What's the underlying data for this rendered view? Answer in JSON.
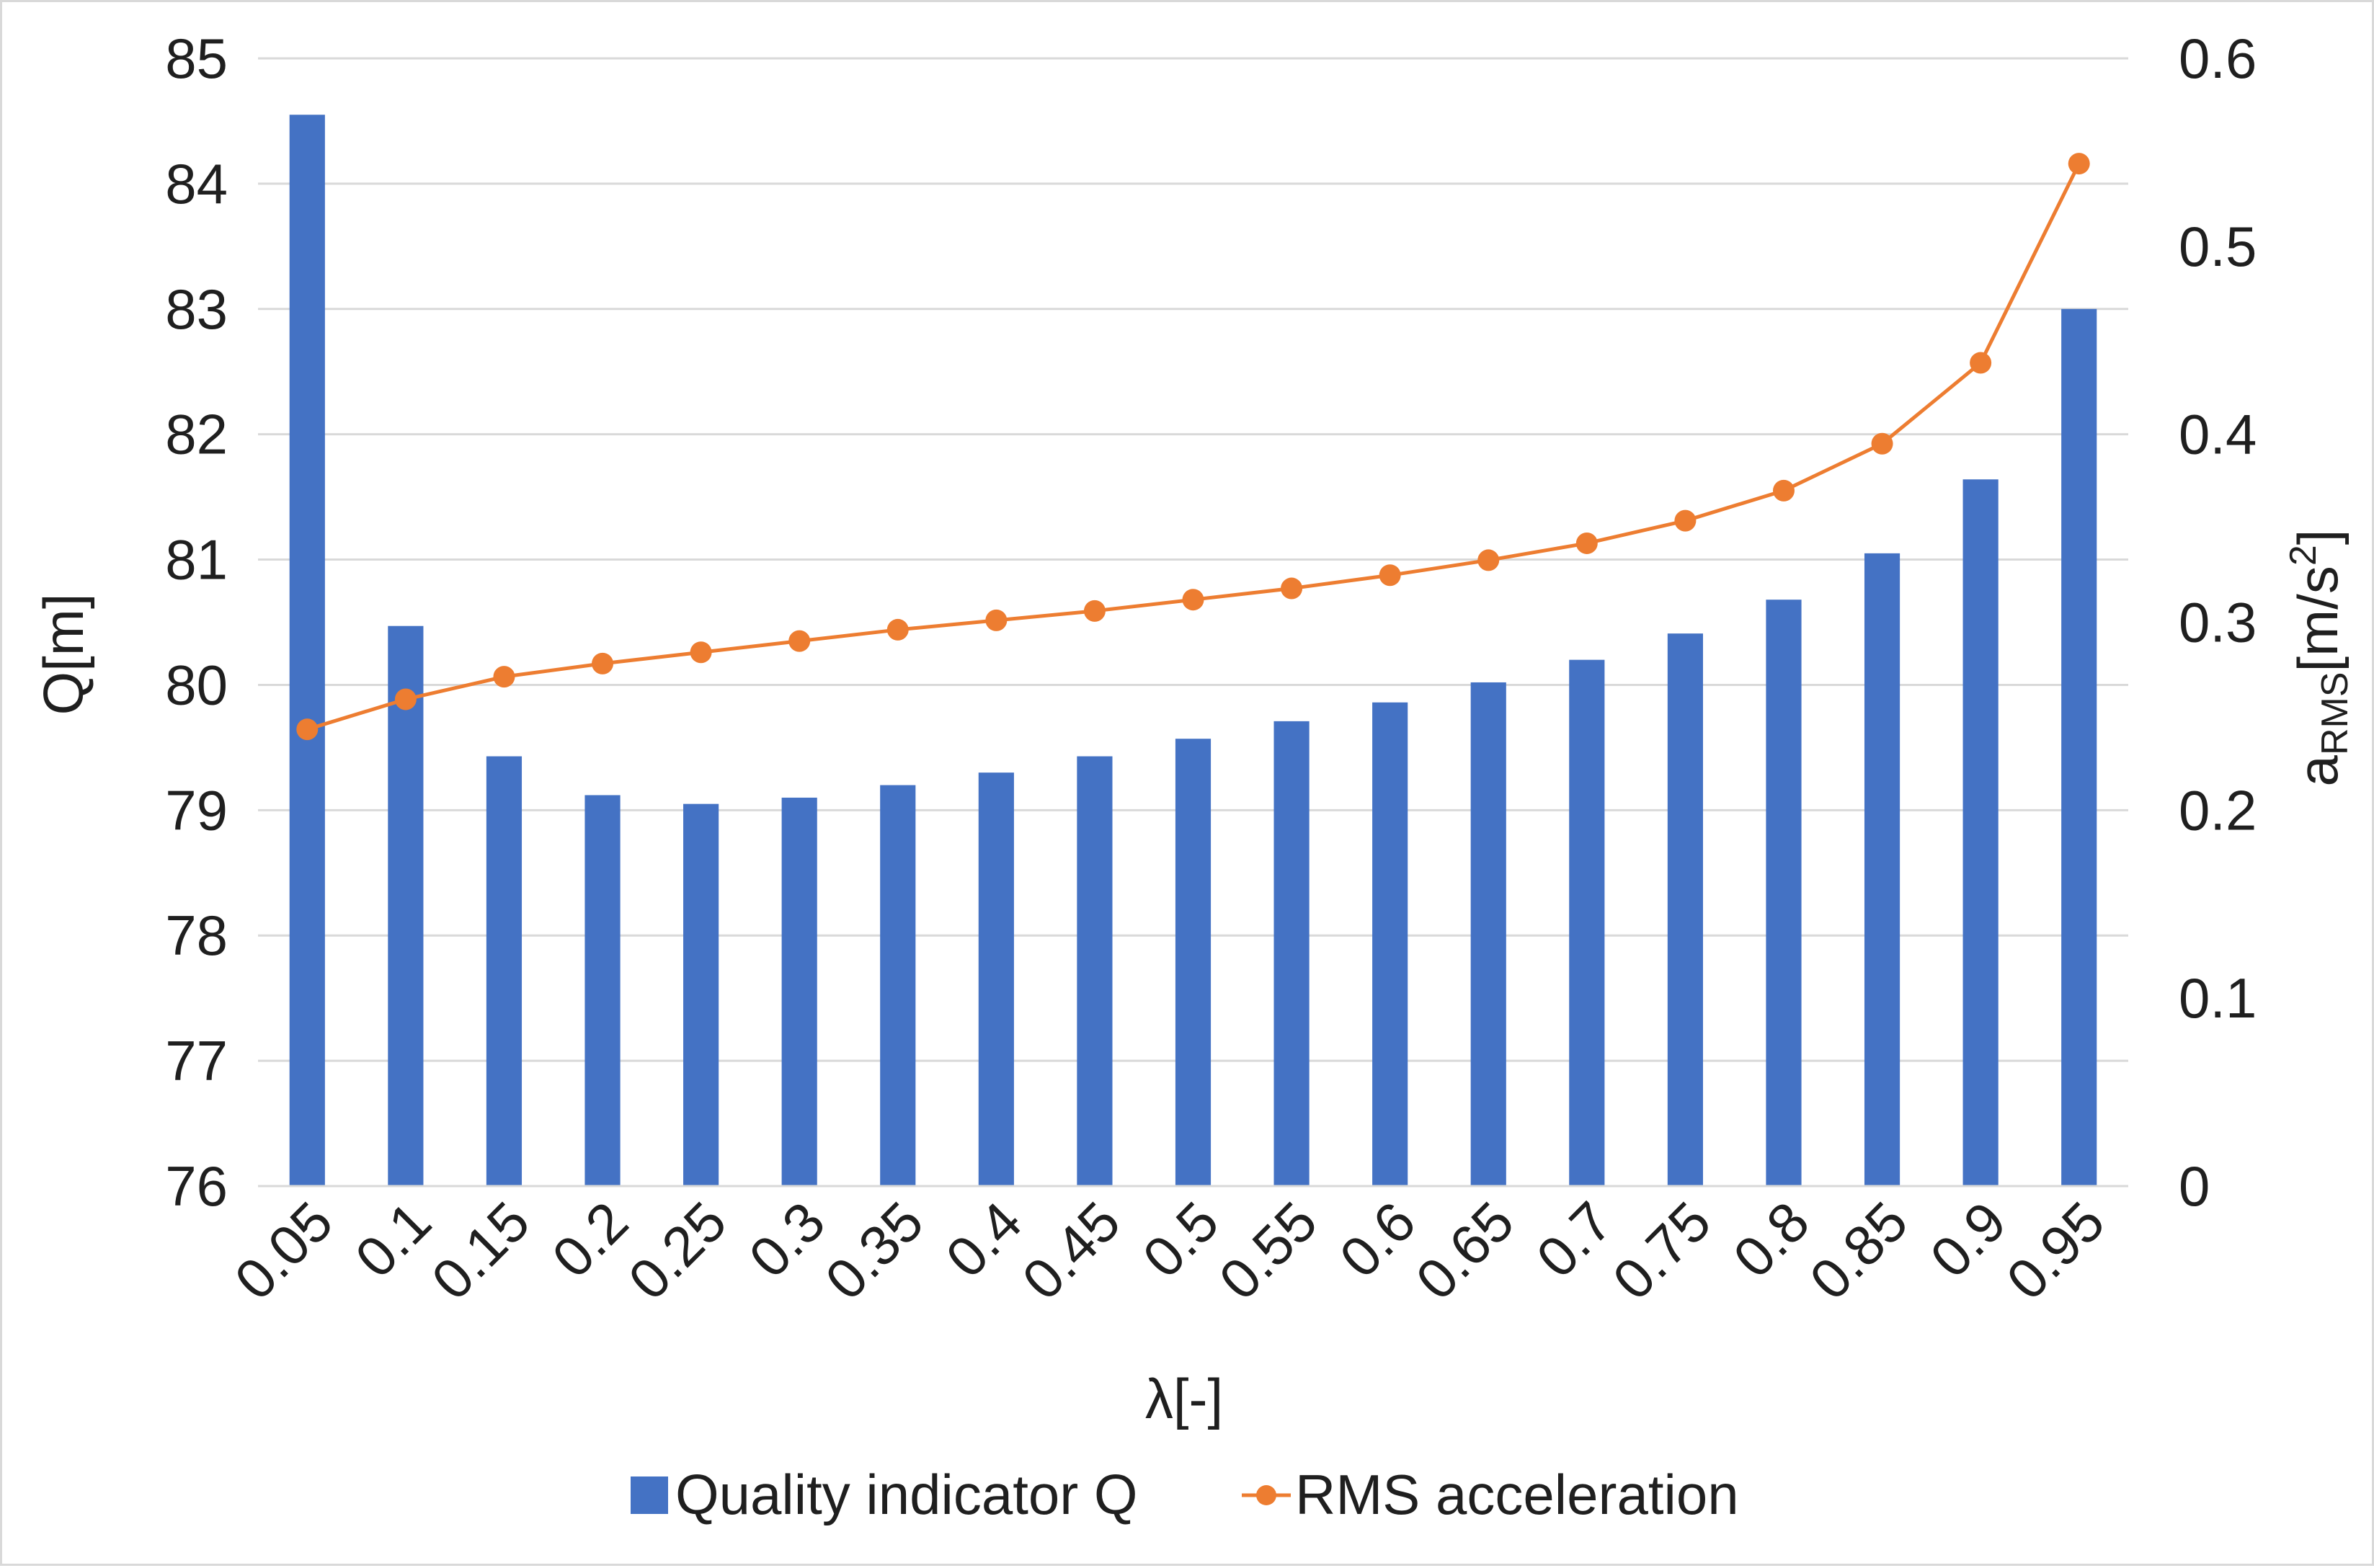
{
  "chart_data": {
    "type": "bar+line",
    "title": "",
    "xlabel": "λ[-]",
    "ylabel_left": "Q[m]",
    "ylabel_right_main": "a",
    "ylabel_right_sub": "RMS",
    "ylabel_right_unit_pre": "[m/s",
    "ylabel_right_unit_sup": "2",
    "ylabel_right_unit_post": "]",
    "categories": [
      "0.05",
      "0.1",
      "0.15",
      "0.2",
      "0.25",
      "0.3",
      "0.35",
      "0.4",
      "0.45",
      "0.5",
      "0.55",
      "0.6",
      "0.65",
      "0.7",
      "0.75",
      "0.8",
      "0.85",
      "0.9",
      "0.95"
    ],
    "ylim_left": [
      76,
      85
    ],
    "yticks_left": [
      "76",
      "77",
      "78",
      "79",
      "80",
      "81",
      "82",
      "83",
      "84",
      "85"
    ],
    "ylim_right": [
      0,
      0.6
    ],
    "yticks_right": [
      "0",
      "0.1",
      "0.2",
      "0.3",
      "0.4",
      "0.5",
      "0.6"
    ],
    "grid": true,
    "legend_position": "bottom",
    "series": [
      {
        "name": "Quality indicator Q",
        "type": "bar",
        "axis": "left",
        "color": "#4472c4",
        "values": [
          84.55,
          80.47,
          79.43,
          79.12,
          79.05,
          79.1,
          79.2,
          79.3,
          79.43,
          79.57,
          79.71,
          79.86,
          80.02,
          80.2,
          80.41,
          80.68,
          81.05,
          81.64,
          83.0
        ]
      },
      {
        "name": "RMS acceleration",
        "type": "line",
        "axis": "right",
        "color": "#ed7d31",
        "values": [
          0.243,
          0.259,
          0.271,
          0.278,
          0.284,
          0.29,
          0.296,
          0.301,
          0.306,
          0.312,
          0.318,
          0.325,
          0.333,
          0.342,
          0.354,
          0.37,
          0.395,
          0.438,
          0.544
        ]
      }
    ]
  }
}
